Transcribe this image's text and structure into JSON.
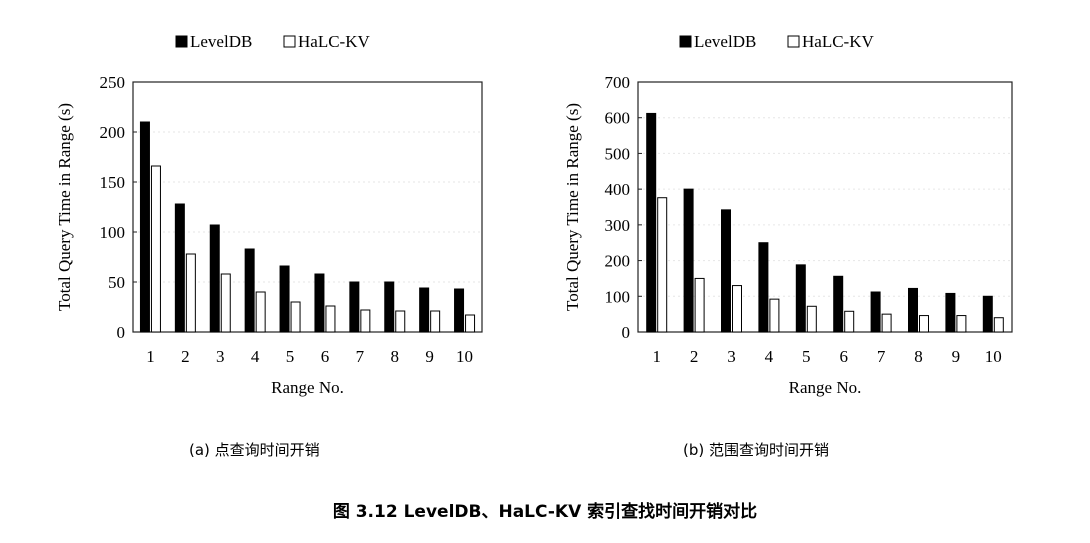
{
  "chart_data": [
    {
      "type": "bar",
      "categories": [
        "1",
        "2",
        "3",
        "4",
        "5",
        "6",
        "7",
        "8",
        "9",
        "10"
      ],
      "series": [
        {
          "name": "LevelDB",
          "color": "#000000",
          "values": [
            210,
            128,
            107,
            83,
            66,
            58,
            50,
            50,
            44,
            43
          ]
        },
        {
          "name": "HaLC-KV",
          "color": "#ffffff",
          "values": [
            166,
            78,
            58,
            40,
            30,
            26,
            22,
            21,
            21,
            17
          ]
        }
      ],
      "title": "",
      "xlabel": "Range No.",
      "ylabel": "Total Query Time in Range (s)",
      "ylim": [
        0,
        250
      ],
      "yticks": [
        0,
        50,
        100,
        150,
        200,
        250
      ],
      "legend": "top",
      "subcaption": "(a) 点查询时间开销"
    },
    {
      "type": "bar",
      "categories": [
        "1",
        "2",
        "3",
        "4",
        "5",
        "6",
        "7",
        "8",
        "9",
        "10"
      ],
      "series": [
        {
          "name": "LevelDB",
          "color": "#000000",
          "values": [
            612,
            400,
            342,
            250,
            188,
            156,
            112,
            122,
            108,
            100
          ]
        },
        {
          "name": "HaLC-KV",
          "color": "#ffffff",
          "values": [
            376,
            150,
            130,
            92,
            72,
            58,
            50,
            46,
            46,
            40
          ]
        }
      ],
      "title": "",
      "xlabel": "Range No.",
      "ylabel": "Total Query Time in Range (s)",
      "ylim": [
        0,
        700
      ],
      "yticks": [
        0,
        100,
        200,
        300,
        400,
        500,
        600,
        700
      ],
      "legend": "top",
      "subcaption": "(b) 范围查询时间开销"
    }
  ],
  "figure_caption": "图 3.12    LevelDB、HaLC-KV 索引查找时间开销对比"
}
